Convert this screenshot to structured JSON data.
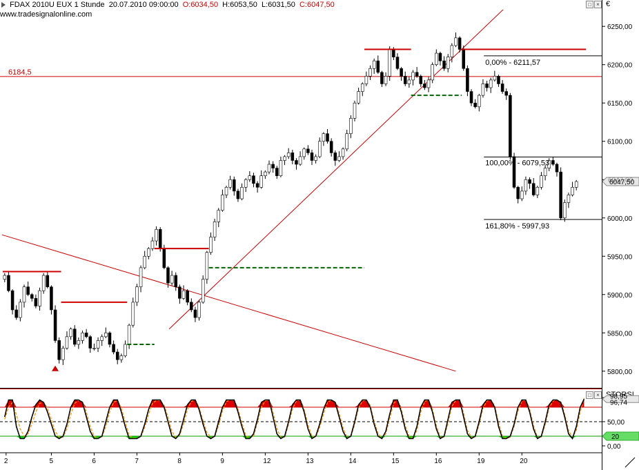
{
  "header": {
    "symbol": "FDAX 2010U EUX 1 Stunde",
    "datetime": "20.07.2010 09:00:00",
    "open": "O:6034,50",
    "high": "H:6053,50",
    "low": "L:6031,50",
    "close": "C:6047,50",
    "website": "www.tradesignalonline.com"
  },
  "price_panel": {
    "currency": "€",
    "level_line_label": "6184,5",
    "fib_labels": [
      "0,00% - 6211,57",
      "100,00% - 6079,53",
      "161,80% - 5997,93"
    ],
    "current_price": "6047,50",
    "current_price_overlap": "6047,00",
    "window_buttons": [
      "□",
      "×"
    ]
  },
  "indicator_panel": {
    "name": "STORSI",
    "value_label_1": "98,95",
    "value_label_2": "96,74",
    "level_label": "20",
    "window_buttons": [
      "□",
      "×"
    ]
  },
  "colors": {
    "bull_stop": "#006400",
    "bear_stop": "#cc0000",
    "trendline": "#cc0000",
    "overbought_fill": "#dd0000",
    "oversold_fill": "#00dd00",
    "signal_line": "#ff9900"
  },
  "chart_data": {
    "type": "candlestick",
    "title": "FDAX 2010U EUX 1 Stunde",
    "y_axis_ticks": [
      6250,
      6200,
      6150,
      6100,
      6050,
      6000,
      5950,
      5900,
      5850,
      5800
    ],
    "y_tick_labels": [
      "6250,00",
      "6200,00",
      "6150,00",
      "6100,00",
      "6050,00",
      "6000,00",
      "5950,00",
      "5900,00",
      "5850,00",
      "5800,00"
    ],
    "ylim": [
      5780,
      6270
    ],
    "x_tick_labels": [
      "2",
      "5",
      "6",
      "7",
      "8",
      "9",
      "12",
      "13",
      "14",
      "15",
      "16",
      "19",
      "20"
    ],
    "horizontal_levels": [
      6184.5
    ],
    "fibonacci": [
      {
        "label": "0,00% - 6211,57",
        "value": 6211.57
      },
      {
        "label": "100,00% - 6079,53",
        "value": 6079.53
      },
      {
        "label": "161,80% - 5997,93",
        "value": 5997.93
      }
    ],
    "last_close": 6047.5,
    "closes": [
      5925,
      5905,
      5880,
      5870,
      5890,
      5910,
      5900,
      5895,
      5885,
      5905,
      5925,
      5910,
      5880,
      5840,
      5815,
      5830,
      5845,
      5855,
      5835,
      5840,
      5850,
      5845,
      5830,
      5830,
      5840,
      5845,
      5850,
      5835,
      5825,
      5815,
      5820,
      5835,
      5860,
      5890,
      5910,
      5935,
      5950,
      5960,
      5970,
      5985,
      5960,
      5935,
      5915,
      5925,
      5910,
      5895,
      5905,
      5890,
      5880,
      5870,
      5890,
      5920,
      5955,
      5975,
      5995,
      6010,
      6030,
      6040,
      6050,
      6035,
      6025,
      6040,
      6050,
      6055,
      6045,
      6040,
      6055,
      6060,
      6070,
      6065,
      6055,
      6075,
      6080,
      6085,
      6075,
      6070,
      6080,
      6090,
      6085,
      6075,
      6080,
      6100,
      6110,
      6100,
      6085,
      6075,
      6080,
      6090,
      6110,
      6130,
      6150,
      6165,
      6175,
      6185,
      6195,
      6205,
      6190,
      6175,
      6185,
      6220,
      6210,
      6195,
      6185,
      6175,
      6180,
      6190,
      6185,
      6175,
      6170,
      6180,
      6200,
      6215,
      6205,
      6195,
      6210,
      6225,
      6235,
      6220,
      6195,
      6165,
      6150,
      6145,
      6160,
      6175,
      6170,
      6180,
      6185,
      6175,
      6165,
      6160,
      6080,
      6040,
      6025,
      6035,
      6050,
      6045,
      6030,
      6040,
      6055,
      6065,
      6075,
      6070,
      6060,
      6000,
      6020,
      6030,
      6040,
      6047.5
    ],
    "stop_segments": [
      {
        "dir": "bear",
        "from": 0,
        "to": 14,
        "value": 5930
      },
      {
        "dir": "bear",
        "from": 15,
        "to": 31,
        "value": 5890
      },
      {
        "dir": "bull",
        "from": 32,
        "to": 38,
        "value": 5835
      },
      {
        "dir": "bear",
        "from": 39,
        "to": 52,
        "value": 5960
      },
      {
        "dir": "bull",
        "from": 53,
        "to": 92,
        "value": 5935
      },
      {
        "dir": "bear",
        "from": 93,
        "to": 104,
        "value": 6220
      },
      {
        "dir": "bull",
        "from": 105,
        "to": 117,
        "value": 6160
      },
      {
        "dir": "bear",
        "from": 118,
        "to": 149,
        "value": 6220
      }
    ],
    "trendlines": [
      {
        "from": [
          0,
          5978
        ],
        "to": [
          116,
          5800
        ]
      },
      {
        "from": [
          43,
          5855
        ],
        "to": [
          135,
          6305
        ]
      }
    ],
    "indicator": {
      "name": "STORSI",
      "y_tick_labels": [
        "100,00",
        "50,00",
        "0,00"
      ],
      "levels": [
        80,
        50,
        20
      ],
      "values": [
        60,
        95,
        95,
        40,
        15,
        15,
        30,
        60,
        85,
        95,
        90,
        70,
        45,
        20,
        15,
        20,
        45,
        80,
        95,
        95,
        90,
        60,
        30,
        15,
        15,
        20,
        50,
        80,
        95,
        95,
        70,
        40,
        15,
        15,
        15,
        20,
        45,
        75,
        95,
        95,
        95,
        80,
        50,
        20,
        15,
        25,
        55,
        85,
        95,
        95,
        75,
        45,
        20,
        15,
        20,
        50,
        80,
        95,
        95,
        95,
        70,
        40,
        15,
        15,
        25,
        55,
        90,
        95,
        95,
        60,
        25,
        15,
        20,
        50,
        85,
        95,
        95,
        70,
        35,
        15,
        20,
        45,
        75,
        95,
        95,
        90,
        60,
        30,
        15,
        20,
        50,
        85,
        95,
        95,
        80,
        45,
        20,
        15,
        30,
        65,
        95,
        95,
        70,
        35,
        15,
        15,
        40,
        80,
        95,
        95,
        70,
        35,
        15,
        20,
        55,
        90,
        95,
        95,
        60,
        25,
        15,
        20,
        50,
        85,
        95,
        95,
        80,
        40,
        15,
        15,
        20,
        45,
        80,
        95,
        95,
        70,
        35,
        15,
        20,
        50,
        85,
        95,
        95,
        90,
        60,
        25,
        15,
        40,
        80,
        96.74
      ],
      "signal": [
        55,
        80,
        90,
        65,
        35,
        20,
        25,
        45,
        70,
        88,
        90,
        78,
        55,
        30,
        18,
        18,
        35,
        65,
        88,
        94,
        91,
        70,
        40,
        20,
        16,
        18,
        40,
        70,
        90,
        94,
        78,
        50,
        22,
        16,
        16,
        18,
        38,
        65,
        88,
        94,
        94,
        84,
        60,
        30,
        18,
        22,
        45,
        75,
        92,
        95,
        80,
        52,
        28,
        18,
        18,
        42,
        72,
        92,
        95,
        94,
        76,
        48,
        22,
        16,
        20,
        48,
        80,
        93,
        95,
        70,
        36,
        18,
        18,
        44,
        76,
        93,
        95,
        76,
        44,
        20,
        18,
        38,
        66,
        90,
        95,
        91,
        68,
        38,
        18,
        18,
        44,
        78,
        93,
        95,
        84,
        52,
        26,
        16,
        25,
        55,
        88,
        95,
        76,
        42,
        20,
        16,
        32,
        70,
        92,
        95,
        76,
        42,
        18,
        18,
        46,
        82,
        94,
        95,
        68,
        32,
        18,
        18,
        44,
        78,
        93,
        95,
        84,
        48,
        20,
        16,
        18,
        40,
        72,
        92,
        95,
        76,
        42,
        18,
        18,
        44,
        78,
        93,
        95,
        91,
        66,
        32,
        18,
        32,
        70,
        98.95
      ]
    }
  }
}
